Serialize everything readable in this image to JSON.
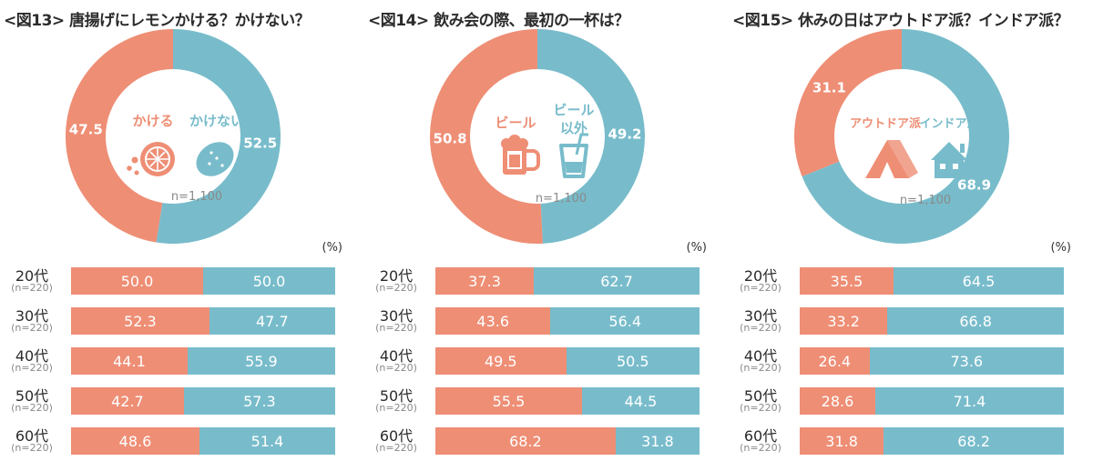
{
  "colors": {
    "orange": "#ee8e75",
    "blue": "#78bccb"
  },
  "unit_label": "(%)",
  "chart_data": [
    {
      "type": "pie",
      "title": "<図13> 唐揚げにレモンかける？かけない？",
      "sample_label": "n=1,100",
      "categories": [
        "かける",
        "かけない"
      ],
      "values": [
        47.5,
        52.5
      ],
      "icons": [
        "lemon-squeeze-icon",
        "lemon-icon"
      ],
      "breakdown": {
        "type": "bar",
        "stacked": true,
        "categories": [
          "20代",
          "30代",
          "40代",
          "50代",
          "60代"
        ],
        "samples": [
          "(n=220)",
          "(n=220)",
          "(n=220)",
          "(n=220)",
          "(n=220)"
        ],
        "series": [
          {
            "name": "かける",
            "values": [
              50.0,
              52.3,
              44.1,
              42.7,
              48.6
            ]
          },
          {
            "name": "かけない",
            "values": [
              50.0,
              47.7,
              55.9,
              57.3,
              51.4
            ]
          }
        ]
      }
    },
    {
      "type": "pie",
      "title": "<図14> 飲み会の際、最初の一杯は？",
      "sample_label": "n=1,100",
      "categories": [
        "ビール",
        "ビール 以外"
      ],
      "values": [
        50.8,
        49.2
      ],
      "icons": [
        "beer-mug-icon",
        "cup-with-straw-icon"
      ],
      "breakdown": {
        "type": "bar",
        "stacked": true,
        "categories": [
          "20代",
          "30代",
          "40代",
          "50代",
          "60代"
        ],
        "samples": [
          "(n=220)",
          "(n=220)",
          "(n=220)",
          "(n=220)",
          "(n=220)"
        ],
        "series": [
          {
            "name": "ビール",
            "values": [
              37.3,
              43.6,
              49.5,
              55.5,
              68.2
            ]
          },
          {
            "name": "ビール以外",
            "values": [
              62.7,
              56.4,
              50.5,
              44.5,
              31.8
            ]
          }
        ]
      }
    },
    {
      "type": "pie",
      "title": "<図15> 休みの日はアウトドア派？インドア派？",
      "sample_label": "n=1,100",
      "categories": [
        "アウトドア派",
        "インドア派"
      ],
      "values": [
        31.1,
        68.9
      ],
      "icons": [
        "tent-icon",
        "house-icon"
      ],
      "breakdown": {
        "type": "bar",
        "stacked": true,
        "categories": [
          "20代",
          "30代",
          "40代",
          "50代",
          "60代"
        ],
        "samples": [
          "(n=220)",
          "(n=220)",
          "(n=220)",
          "(n=220)",
          "(n=220)"
        ],
        "series": [
          {
            "name": "アウトドア派",
            "values": [
              35.5,
              33.2,
              26.4,
              28.6,
              31.8
            ]
          },
          {
            "name": "インドア派",
            "values": [
              64.5,
              66.8,
              73.6,
              71.4,
              68.2
            ]
          }
        ]
      }
    }
  ]
}
